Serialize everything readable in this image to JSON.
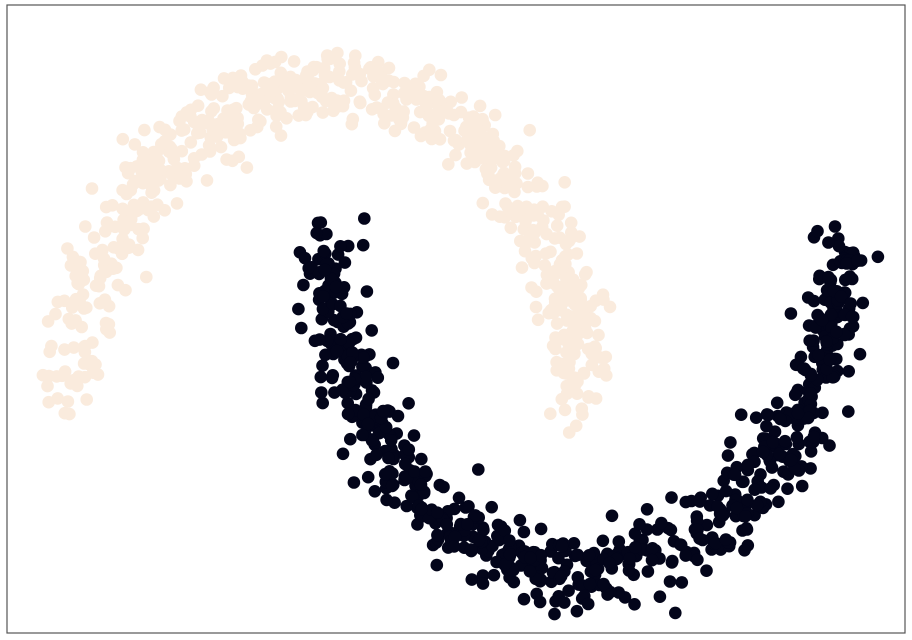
{
  "chart_data": {
    "type": "scatter",
    "title": "",
    "xlabel": "",
    "ylabel": "",
    "xlim": [
      -1.25,
      2.25
    ],
    "ylim": [
      -0.7,
      1.25
    ],
    "grid": false,
    "legend": "none",
    "axes_ticks": "hidden",
    "series": [
      {
        "color": "#faebdd",
        "shape": "upper-moon",
        "center": [
          0.0,
          0.0
        ],
        "radius": 1.0,
        "arc_degrees": [
          0,
          180
        ],
        "noise_sd": 0.06,
        "point_count": 700
      },
      {
        "color": "#03051a",
        "shape": "lower-moon",
        "center": [
          1.0,
          0.5
        ],
        "radius": 1.0,
        "arc_degrees": [
          180,
          360
        ],
        "noise_sd": 0.06,
        "point_count": 700
      }
    ]
  }
}
